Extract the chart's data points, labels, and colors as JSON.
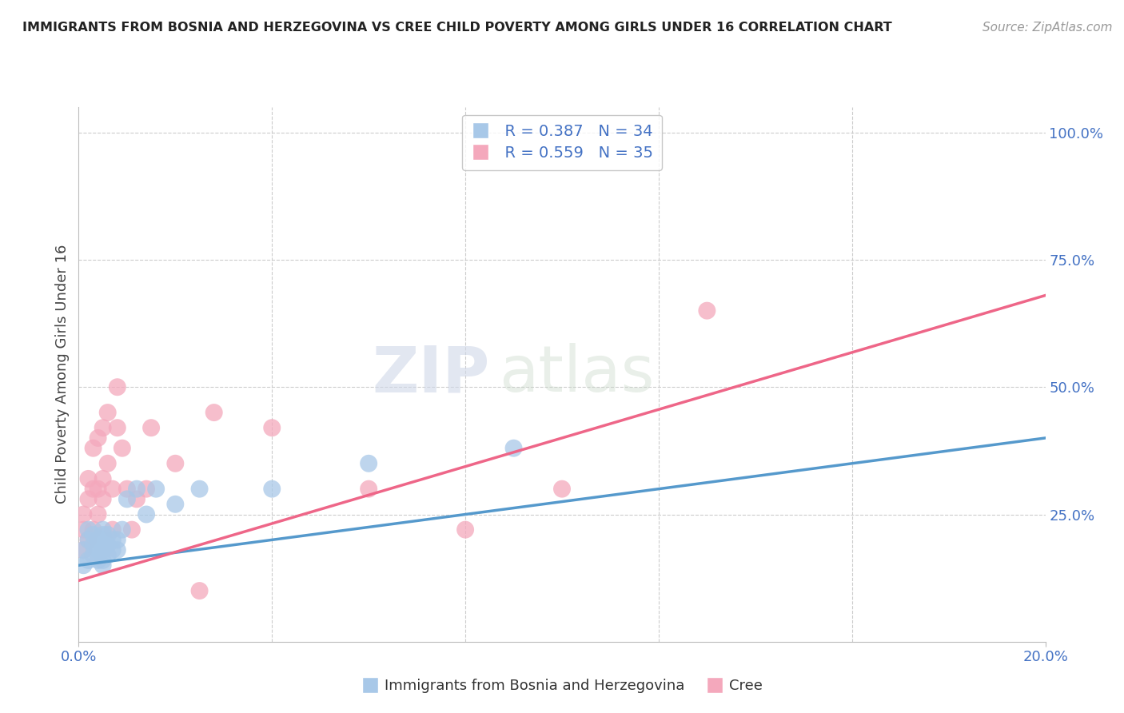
{
  "title": "IMMIGRANTS FROM BOSNIA AND HERZEGOVINA VS CREE CHILD POVERTY AMONG GIRLS UNDER 16 CORRELATION CHART",
  "source": "Source: ZipAtlas.com",
  "ylabel": "Child Poverty Among Girls Under 16",
  "xlim": [
    0.0,
    0.2
  ],
  "ylim": [
    0.0,
    1.05
  ],
  "yticks_right": [
    0.0,
    0.25,
    0.5,
    0.75,
    1.0
  ],
  "ytick_right_labels": [
    "",
    "25.0%",
    "50.0%",
    "75.0%",
    "100.0%"
  ],
  "legend_r1": "R = 0.387",
  "legend_n1": "N = 34",
  "legend_r2": "R = 0.559",
  "legend_n2": "N = 35",
  "color_blue": "#a8c8e8",
  "color_pink": "#f4a8bc",
  "color_blue_line": "#5599cc",
  "color_pink_line": "#ee6688",
  "watermark_zip": "ZIP",
  "watermark_atlas": "atlas",
  "blue_scatter_x": [
    0.001,
    0.001,
    0.002,
    0.002,
    0.002,
    0.003,
    0.003,
    0.003,
    0.004,
    0.004,
    0.004,
    0.005,
    0.005,
    0.005,
    0.005,
    0.005,
    0.005,
    0.006,
    0.006,
    0.006,
    0.007,
    0.007,
    0.008,
    0.008,
    0.009,
    0.01,
    0.012,
    0.014,
    0.016,
    0.02,
    0.025,
    0.04,
    0.06,
    0.09
  ],
  "blue_scatter_y": [
    0.15,
    0.18,
    0.2,
    0.16,
    0.22,
    0.17,
    0.19,
    0.21,
    0.16,
    0.18,
    0.2,
    0.15,
    0.18,
    0.2,
    0.16,
    0.21,
    0.22,
    0.17,
    0.19,
    0.21,
    0.18,
    0.2,
    0.18,
    0.2,
    0.22,
    0.28,
    0.3,
    0.25,
    0.3,
    0.27,
    0.3,
    0.3,
    0.35,
    0.38
  ],
  "pink_scatter_x": [
    0.001,
    0.001,
    0.001,
    0.002,
    0.002,
    0.002,
    0.003,
    0.003,
    0.003,
    0.004,
    0.004,
    0.004,
    0.005,
    0.005,
    0.005,
    0.006,
    0.006,
    0.007,
    0.007,
    0.008,
    0.008,
    0.009,
    0.01,
    0.011,
    0.012,
    0.014,
    0.015,
    0.02,
    0.025,
    0.028,
    0.04,
    0.06,
    0.08,
    0.1,
    0.13
  ],
  "pink_scatter_y": [
    0.18,
    0.22,
    0.25,
    0.2,
    0.28,
    0.32,
    0.22,
    0.3,
    0.38,
    0.25,
    0.3,
    0.4,
    0.28,
    0.32,
    0.42,
    0.35,
    0.45,
    0.3,
    0.22,
    0.42,
    0.5,
    0.38,
    0.3,
    0.22,
    0.28,
    0.3,
    0.42,
    0.35,
    0.1,
    0.45,
    0.42,
    0.3,
    0.22,
    0.3,
    0.65
  ],
  "blue_trend_x": [
    0.0,
    0.2
  ],
  "blue_trend_y": [
    0.15,
    0.4
  ],
  "pink_trend_x": [
    0.0,
    0.2
  ],
  "pink_trend_y": [
    0.12,
    0.68
  ]
}
